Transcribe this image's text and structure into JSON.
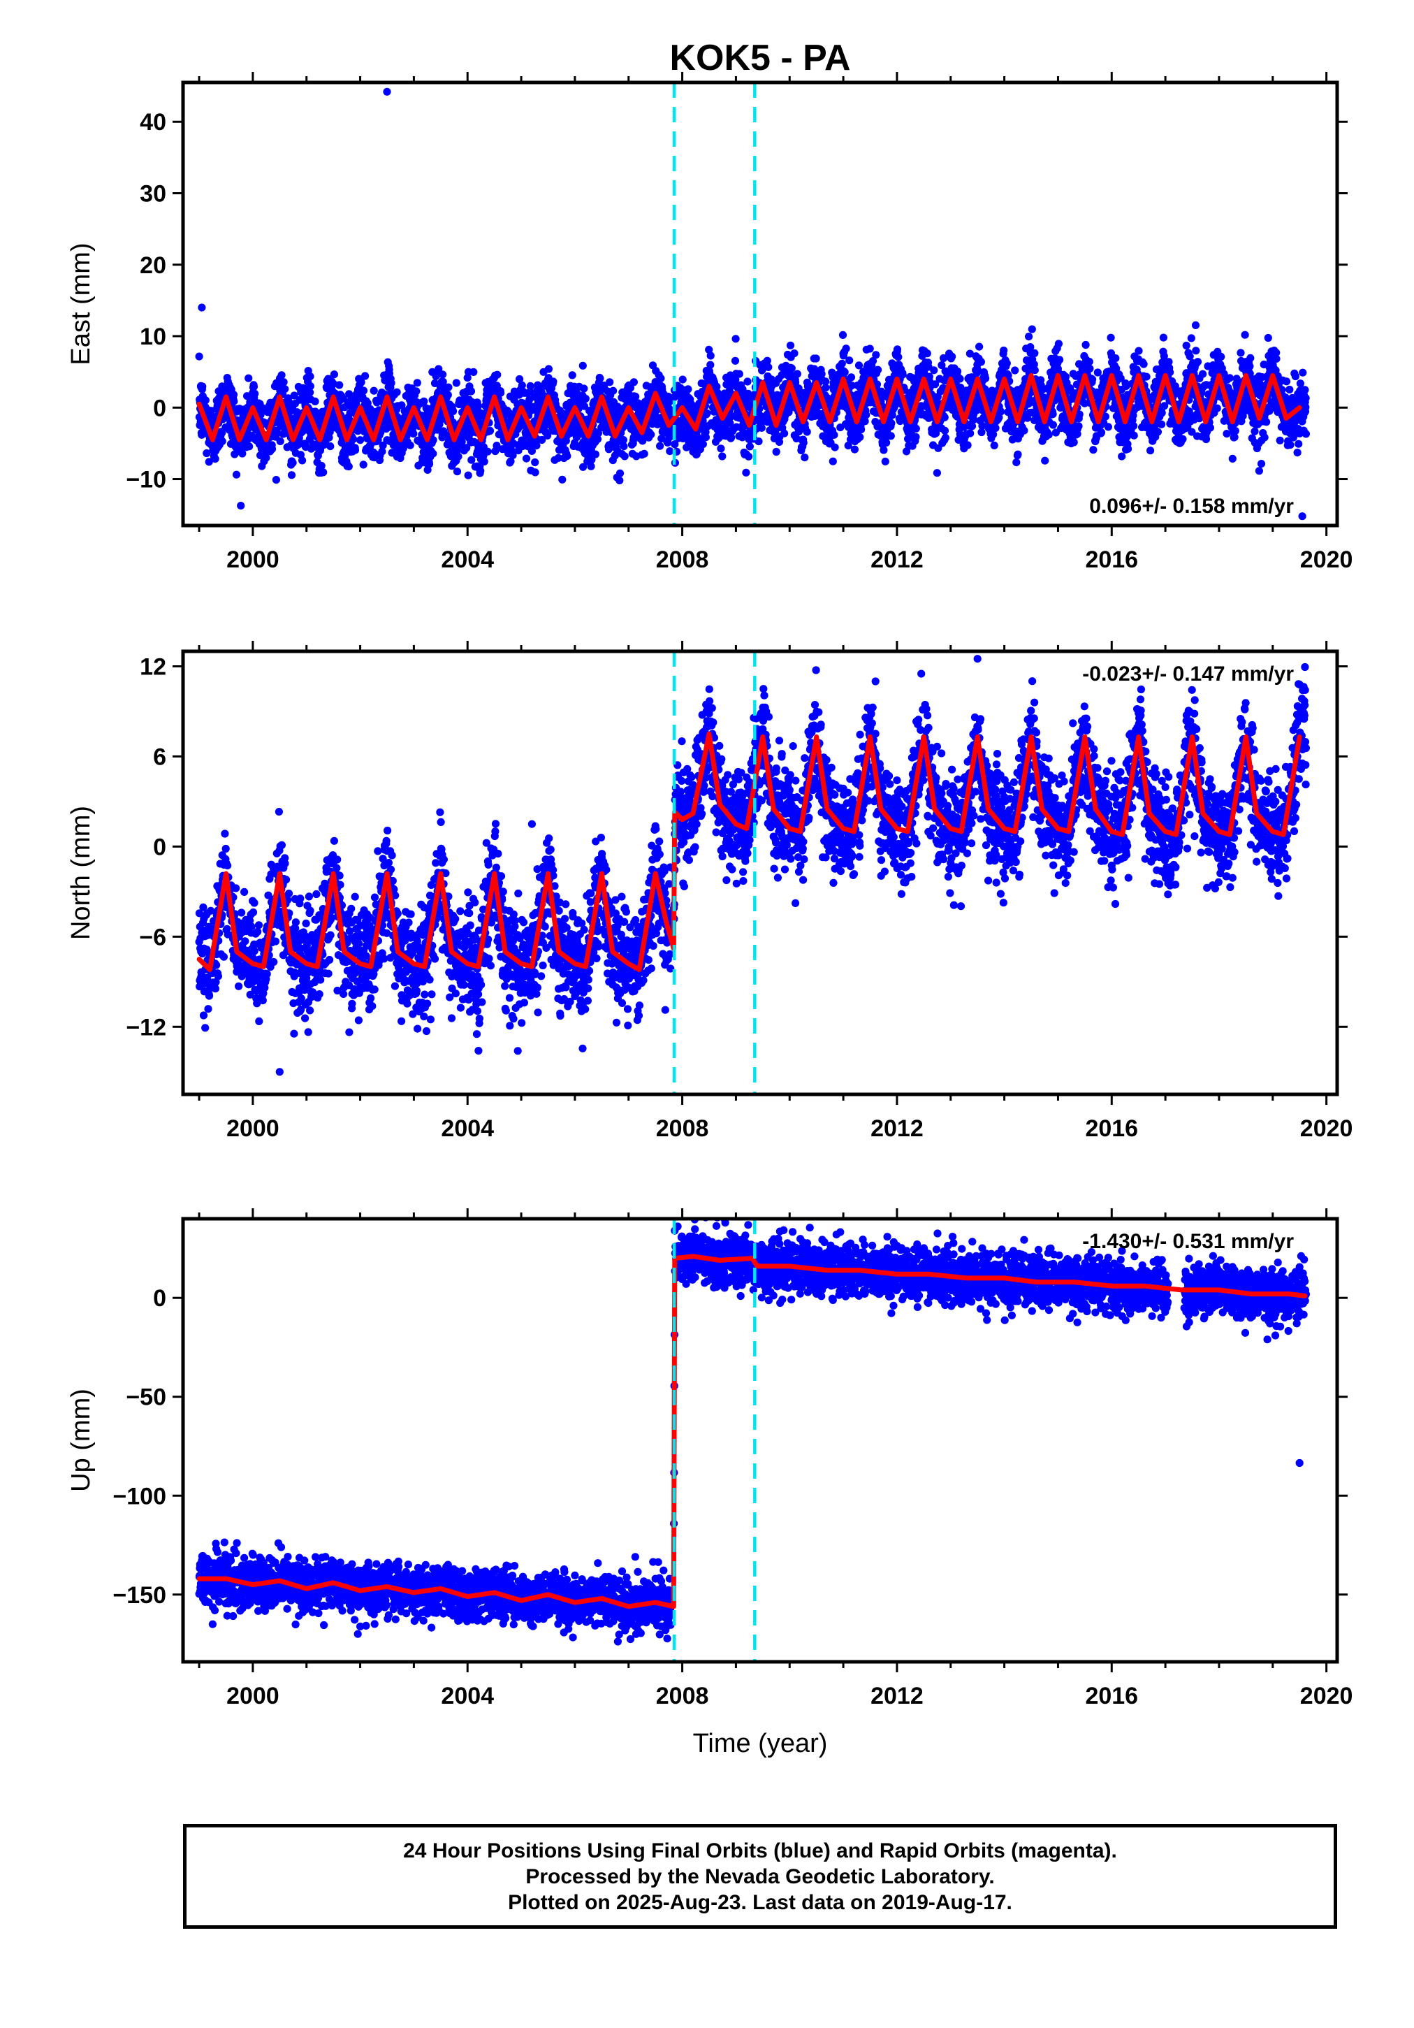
{
  "chart_data": {
    "title": "KOK5 - PA",
    "type": "scatter",
    "x_ticks": [
      "2000",
      "2004",
      "2008",
      "2012",
      "2016",
      "2020"
    ],
    "xlabel": "Time (year)",
    "xlim": [
      1998.7,
      2020.2
    ],
    "steps": [
      2007.85,
      2009.35
    ],
    "panels": [
      {
        "name": "east",
        "ylabel": "East (mm)",
        "ylim": [
          -16.5,
          45.5
        ],
        "yticks": [
          -10,
          0,
          10,
          20,
          30,
          40
        ],
        "y_tick_labels": [
          "−10",
          "0",
          "10",
          "20",
          "30",
          "40"
        ],
        "rate": "0.096+/- 0.158 mm/yr",
        "rate_position": "bottom-right",
        "model": {
          "x": [
            1999.0,
            1999.25,
            1999.5,
            1999.75,
            2000.0,
            2000.25,
            2000.5,
            2000.75,
            2001.0,
            2001.25,
            2001.5,
            2001.75,
            2002.0,
            2002.25,
            2002.5,
            2002.75,
            2003.0,
            2003.25,
            2003.5,
            2003.75,
            2004.0,
            2004.25,
            2004.5,
            2004.75,
            2005.0,
            2005.25,
            2005.5,
            2005.75,
            2006.0,
            2006.25,
            2006.5,
            2006.75,
            2007.0,
            2007.25,
            2007.5,
            2007.75,
            2008.0,
            2008.25,
            2008.5,
            2008.75,
            2009.0,
            2009.25,
            2009.5,
            2009.75,
            2010.0,
            2010.25,
            2010.5,
            2010.75,
            2011.0,
            2011.25,
            2011.5,
            2011.75,
            2012.0,
            2012.25,
            2012.5,
            2012.75,
            2013.0,
            2013.25,
            2013.5,
            2013.75,
            2014.0,
            2014.25,
            2014.5,
            2014.75,
            2015.0,
            2015.25,
            2015.5,
            2015.75,
            2016.0,
            2016.25,
            2016.5,
            2016.75,
            2017.0,
            2017.25,
            2017.5,
            2017.75,
            2018.0,
            2018.25,
            2018.5,
            2018.75,
            2019.0,
            2019.25,
            2019.5
          ],
          "y": [
            0.5,
            -4.5,
            1.5,
            -4.5,
            0.0,
            -4.5,
            1.5,
            -4.5,
            0.0,
            -4.5,
            1.5,
            -4.5,
            0.0,
            -4.5,
            1.5,
            -4.5,
            0.0,
            -4.5,
            1.5,
            -4.5,
            0.0,
            -4.5,
            1.5,
            -4.5,
            0.0,
            -4.0,
            1.5,
            -4.0,
            0.0,
            -4.0,
            1.5,
            -4.0,
            0.0,
            -3.5,
            2.0,
            -2.5,
            0.0,
            -3.0,
            3.0,
            -1.5,
            2.0,
            -2.5,
            3.5,
            -2.5,
            3.5,
            -2.0,
            3.5,
            -2.0,
            4.0,
            -2.0,
            4.0,
            -2.0,
            4.0,
            -2.0,
            4.0,
            -2.0,
            4.0,
            -2.0,
            4.0,
            -2.0,
            4.0,
            -2.0,
            4.5,
            -2.0,
            4.5,
            -2.0,
            4.5,
            -2.0,
            4.5,
            -2.0,
            4.5,
            -2.0,
            4.5,
            -2.0,
            4.5,
            -2.0,
            4.5,
            -2.0,
            4.5,
            -1.5,
            4.5,
            -1.5,
            0.0
          ]
        },
        "outliers": [
          [
            2002.5,
            44.2
          ],
          [
            1999.05,
            14.0
          ],
          [
            2019.55,
            -15.2
          ]
        ]
      },
      {
        "name": "north",
        "ylabel": "North (mm)",
        "ylim": [
          -16.5,
          13.0
        ],
        "yticks": [
          -12,
          -6,
          0,
          6,
          12
        ],
        "y_tick_labels": [
          "−12",
          "−6",
          "0",
          "6",
          "12"
        ],
        "rate": "-0.023+/- 0.147 mm/yr",
        "rate_position": "top-right",
        "model": {
          "x": [
            1999.0,
            1999.2,
            1999.5,
            1999.7,
            2000.0,
            2000.2,
            2000.5,
            2000.7,
            2001.0,
            2001.2,
            2001.5,
            2001.7,
            2002.0,
            2002.2,
            2002.5,
            2002.7,
            2003.0,
            2003.2,
            2003.5,
            2003.7,
            2004.0,
            2004.2,
            2004.5,
            2004.7,
            2005.0,
            2005.2,
            2005.5,
            2005.7,
            2006.0,
            2006.2,
            2006.5,
            2006.7,
            2007.0,
            2007.2,
            2007.5,
            2007.7,
            2007.84,
            2007.86,
            2008.0,
            2008.2,
            2008.5,
            2008.7,
            2009.0,
            2009.2,
            2009.5,
            2009.7,
            2010.0,
            2010.2,
            2010.5,
            2010.7,
            2011.0,
            2011.2,
            2011.5,
            2011.7,
            2012.0,
            2012.2,
            2012.5,
            2012.7,
            2013.0,
            2013.2,
            2013.5,
            2013.7,
            2014.0,
            2014.2,
            2014.5,
            2014.7,
            2015.0,
            2015.2,
            2015.5,
            2015.7,
            2016.0,
            2016.2,
            2016.5,
            2016.7,
            2017.0,
            2017.2,
            2017.5,
            2017.7,
            2018.0,
            2018.2,
            2018.5,
            2018.7,
            2019.0,
            2019.2,
            2019.5
          ],
          "y": [
            -7.5,
            -8.2,
            -1.8,
            -7.0,
            -7.8,
            -8.0,
            -1.8,
            -7.0,
            -7.8,
            -8.0,
            -1.8,
            -7.0,
            -7.8,
            -8.0,
            -1.8,
            -7.0,
            -7.8,
            -8.0,
            -1.8,
            -7.0,
            -7.8,
            -8.0,
            -1.8,
            -7.0,
            -7.8,
            -8.0,
            -1.8,
            -7.0,
            -7.8,
            -8.0,
            -1.8,
            -7.0,
            -7.8,
            -8.2,
            -1.8,
            -5.0,
            -6.8,
            2.3,
            1.8,
            2.2,
            7.5,
            2.8,
            1.5,
            1.2,
            7.3,
            2.5,
            1.2,
            1.0,
            7.3,
            2.5,
            1.2,
            1.0,
            7.3,
            2.5,
            1.2,
            1.0,
            7.3,
            2.5,
            1.2,
            1.0,
            7.3,
            2.5,
            1.2,
            1.0,
            7.3,
            2.5,
            1.2,
            1.0,
            7.3,
            2.5,
            1.0,
            0.8,
            7.3,
            2.2,
            1.0,
            0.8,
            7.3,
            2.2,
            1.0,
            0.8,
            7.3,
            2.2,
            1.0,
            0.8,
            7.3
          ]
        },
        "outliers": [
          [
            2013.5,
            12.5
          ],
          [
            2011.6,
            11.0
          ],
          [
            2000.5,
            -15.0
          ],
          [
            2005.2,
            1.5
          ]
        ]
      },
      {
        "name": "up",
        "ylabel": "Up (mm)",
        "ylim": [
          -184,
          40
        ],
        "yticks": [
          -150,
          -100,
          -50,
          0
        ],
        "y_tick_labels": [
          "−150",
          "−100",
          "−50",
          "0"
        ],
        "rate": "-1.430+/- 0.531 mm/yr",
        "rate_position": "top-right",
        "model": {
          "x": [
            1999.0,
            1999.5,
            2000.0,
            2000.5,
            2001.0,
            2001.5,
            2002.0,
            2002.5,
            2003.0,
            2003.5,
            2004.0,
            2004.5,
            2005.0,
            2005.5,
            2006.0,
            2006.5,
            2007.0,
            2007.5,
            2007.84,
            2007.86,
            2008.2,
            2008.7,
            2009.3,
            2009.4,
            2010.0,
            2010.7,
            2011.3,
            2012.0,
            2012.6,
            2013.3,
            2014.0,
            2014.6,
            2015.3,
            2016.0,
            2016.6,
            2017.3,
            2018.0,
            2018.6,
            2019.3,
            2019.6
          ],
          "y": [
            -142,
            -142,
            -145,
            -143,
            -147,
            -144,
            -148,
            -146,
            -149,
            -147,
            -151,
            -149,
            -153,
            -150,
            -154,
            -152,
            -156,
            -154,
            -156,
            20,
            21,
            19,
            20,
            16,
            16,
            14,
            14,
            12,
            12,
            10,
            10,
            8,
            8,
            6,
            6,
            4,
            4,
            2,
            2,
            1
          ]
        },
        "outliers": [
          [
            2019.5,
            -83.5
          ],
          [
            2018.9,
            -21.0
          ],
          [
            2008.8,
            38.0
          ]
        ]
      }
    ]
  },
  "footer": {
    "line1": "24 Hour Positions Using Final Orbits (blue) and Rapid Orbits (magenta).",
    "line2": "Processed by the Nevada Geodetic Laboratory.",
    "line3": "Plotted on 2025-Aug-23. Last data on 2019-Aug-17."
  },
  "colors": {
    "final_points": "#0000ff",
    "model_line": "#ff0000",
    "step_lines": "#00e5ee"
  }
}
